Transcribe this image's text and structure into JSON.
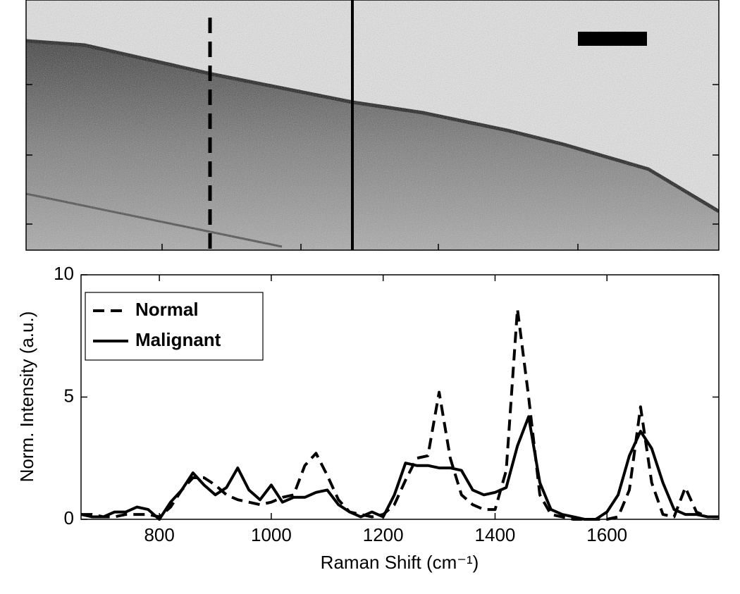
{
  "chart_data": {
    "type": "line",
    "xlabel": "Raman Shift (cm⁻¹)",
    "ylabel": "Norm. Intensity (a.u.)",
    "x": [
      660,
      680,
      700,
      720,
      740,
      760,
      780,
      800,
      820,
      840,
      860,
      880,
      900,
      920,
      940,
      960,
      980,
      1000,
      1020,
      1040,
      1060,
      1080,
      1100,
      1120,
      1140,
      1160,
      1180,
      1200,
      1220,
      1240,
      1260,
      1280,
      1300,
      1320,
      1340,
      1360,
      1380,
      1400,
      1420,
      1440,
      1460,
      1480,
      1500,
      1520,
      1540,
      1560,
      1580,
      1600,
      1620,
      1640,
      1660,
      1680,
      1700,
      1720,
      1740,
      1760,
      1780,
      1800
    ],
    "series": [
      {
        "name": "Normal",
        "color": "#000000",
        "dash": true,
        "values": [
          0.2,
          0.2,
          0.1,
          0.1,
          0.2,
          0.2,
          0.2,
          0.1,
          0.5,
          1.2,
          1.7,
          1.7,
          1.4,
          1.0,
          0.8,
          0.7,
          0.6,
          0.7,
          0.9,
          1.0,
          2.2,
          2.7,
          1.8,
          0.8,
          0.3,
          0.2,
          0.1,
          0.2,
          0.6,
          1.6,
          2.5,
          2.6,
          5.2,
          2.5,
          1.0,
          0.6,
          0.4,
          0.4,
          2.0,
          8.6,
          5.0,
          1.0,
          0.2,
          0.1,
          0.0,
          0.0,
          0.0,
          0.0,
          0.1,
          1.2,
          4.6,
          1.5,
          0.2,
          0.1,
          1.3,
          0.3,
          0.1,
          0.1
        ]
      },
      {
        "name": "Malignant",
        "color": "#000000",
        "dash": false,
        "values": [
          0.2,
          0.1,
          0.1,
          0.3,
          0.3,
          0.5,
          0.4,
          0.0,
          0.7,
          1.2,
          1.9,
          1.4,
          1.0,
          1.3,
          2.1,
          1.2,
          0.8,
          1.4,
          0.7,
          0.9,
          0.9,
          1.1,
          1.2,
          0.6,
          0.3,
          0.1,
          0.3,
          0.1,
          1.0,
          2.3,
          2.2,
          2.2,
          2.1,
          2.1,
          2.0,
          1.2,
          1.0,
          1.1,
          1.3,
          3.0,
          4.2,
          1.5,
          0.4,
          0.2,
          0.1,
          0.0,
          0.0,
          0.3,
          1.0,
          2.6,
          3.6,
          2.9,
          1.5,
          0.4,
          0.2,
          0.2,
          0.1,
          0.1
        ]
      }
    ],
    "xlim": [
      660,
      1800
    ],
    "xticks": [
      800,
      1000,
      1200,
      1400,
      1600
    ],
    "ylim": [
      0,
      10
    ],
    "yticks": [
      0,
      5,
      10
    ],
    "legend": "upper left"
  }
}
